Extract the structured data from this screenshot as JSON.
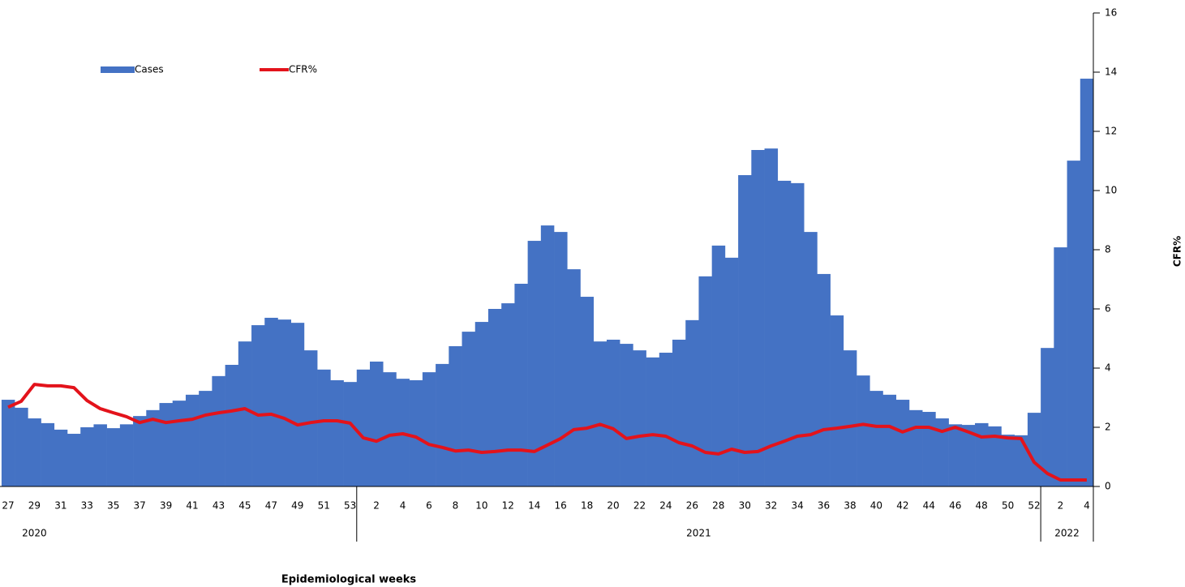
{
  "chart_data": {
    "type": "bar-line",
    "x_label": "Epidemiological  weeks",
    "ylabel": "CFR%",
    "categories": [
      "27",
      null,
      "29",
      null,
      "31",
      null,
      "33",
      null,
      "35",
      null,
      "37",
      null,
      "39",
      null,
      "41",
      null,
      "43",
      null,
      "45",
      null,
      "47",
      null,
      "49",
      null,
      "51",
      null,
      "53",
      null,
      "2",
      null,
      "4",
      null,
      "6",
      null,
      "8",
      null,
      "10",
      null,
      "12",
      null,
      "14",
      null,
      "16",
      null,
      "18",
      null,
      "20",
      null,
      "22",
      null,
      "24",
      null,
      "26",
      null,
      "28",
      null,
      "30",
      null,
      "32",
      null,
      "34",
      null,
      "36",
      null,
      "38",
      null,
      "40",
      null,
      "42",
      null,
      "44",
      null,
      "46",
      null,
      "48",
      null,
      "50",
      null,
      "52",
      null,
      "2",
      null,
      "4"
    ],
    "year_groups": [
      {
        "label": "2020",
        "count": 27
      },
      {
        "label": "2021",
        "count": 52
      },
      {
        "label": "2022",
        "count": 4
      }
    ],
    "series": [
      {
        "name": "Cases",
        "type": "bar",
        "color": "#4472c4",
        "values": [
          2.93,
          2.66,
          2.3,
          2.14,
          1.92,
          1.78,
          2.0,
          2.1,
          1.97,
          2.1,
          2.38,
          2.58,
          2.82,
          2.9,
          3.1,
          3.23,
          3.73,
          4.11,
          4.9,
          5.45,
          5.7,
          5.64,
          5.53,
          4.6,
          3.95,
          3.59,
          3.53,
          3.95,
          4.22,
          3.86,
          3.64,
          3.59,
          3.86,
          4.14,
          4.74,
          5.23,
          5.56,
          6.0,
          6.19,
          6.85,
          8.3,
          8.82,
          8.6,
          7.34,
          6.41,
          4.9,
          4.96,
          4.82,
          4.6,
          4.36,
          4.52,
          4.96,
          5.62,
          7.1,
          8.14,
          7.73,
          10.52,
          11.37,
          11.42,
          10.33,
          10.25,
          8.6,
          7.18,
          5.78,
          4.6,
          3.75,
          3.23,
          3.1,
          2.93,
          2.58,
          2.52,
          2.3,
          2.1,
          2.08,
          2.14,
          2.03,
          1.75,
          1.73,
          2.49,
          4.68,
          8.08,
          11.01,
          13.78
        ]
      },
      {
        "name": "CFR%",
        "type": "line",
        "color": "#e3131b",
        "values": [
          2.68,
          2.88,
          3.45,
          3.4,
          3.4,
          3.34,
          2.9,
          2.63,
          2.49,
          2.36,
          2.16,
          2.27,
          2.16,
          2.22,
          2.27,
          2.41,
          2.49,
          2.55,
          2.63,
          2.41,
          2.44,
          2.3,
          2.08,
          2.16,
          2.22,
          2.22,
          2.14,
          1.64,
          1.53,
          1.73,
          1.78,
          1.67,
          1.42,
          1.32,
          1.2,
          1.23,
          1.15,
          1.18,
          1.23,
          1.23,
          1.18,
          1.4,
          1.62,
          1.92,
          1.97,
          2.1,
          1.95,
          1.62,
          1.7,
          1.75,
          1.7,
          1.48,
          1.37,
          1.15,
          1.1,
          1.26,
          1.15,
          1.18,
          1.37,
          1.53,
          1.7,
          1.75,
          1.92,
          1.97,
          2.03,
          2.1,
          2.03,
          2.03,
          1.84,
          2.0,
          2.0,
          1.86,
          2.0,
          1.84,
          1.67,
          1.7,
          1.64,
          1.62,
          0.82,
          0.44,
          0.22,
          0.22,
          0.22
        ]
      }
    ],
    "ylim": [
      0,
      16
    ],
    "yticks": [
      0,
      2,
      4,
      6,
      8,
      10,
      12,
      14,
      16
    ]
  }
}
